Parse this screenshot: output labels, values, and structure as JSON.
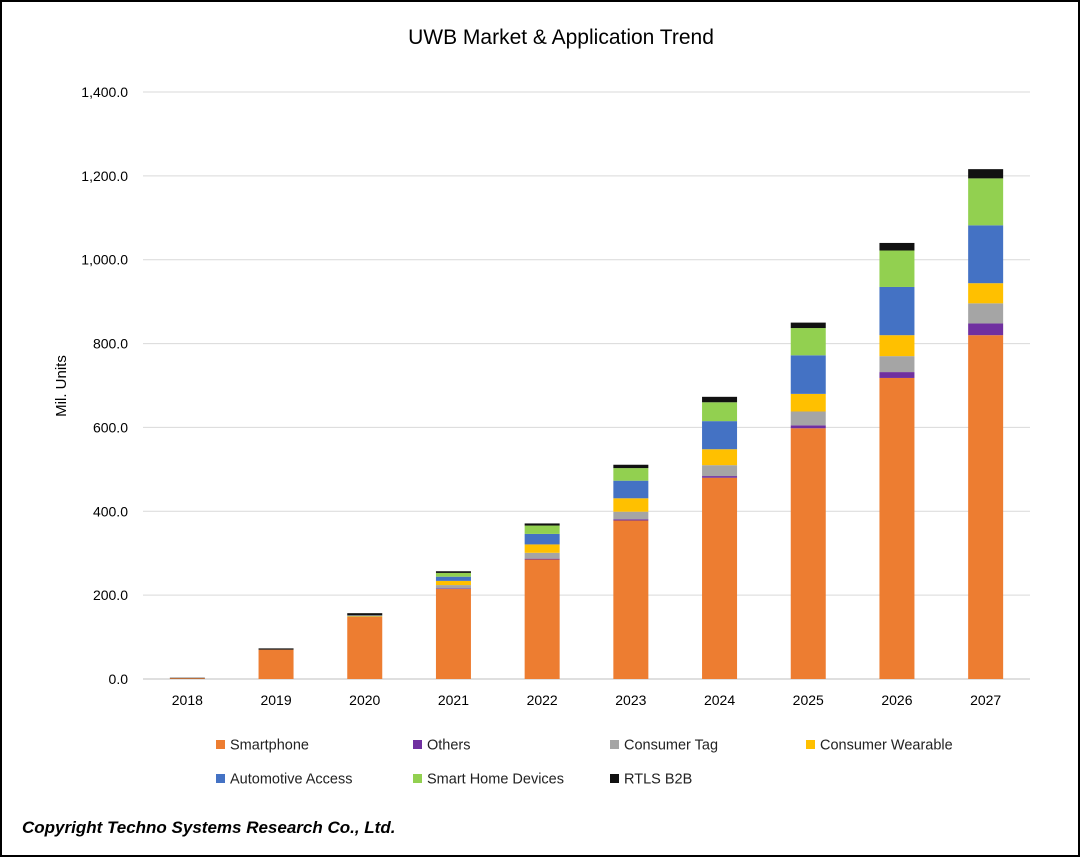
{
  "chart_data": {
    "type": "bar",
    "stacked": true,
    "title": "UWB Market & Application Trend",
    "xlabel": "",
    "ylabel": "Mil. Units",
    "ylim": [
      0,
      1400
    ],
    "yticks": [
      "0.0",
      "200.0",
      "400.0",
      "600.0",
      "800.0",
      "1,000.0",
      "1,200.0",
      "1,400.0"
    ],
    "ytick_values": [
      0,
      200,
      400,
      600,
      800,
      1000,
      1200,
      1400
    ],
    "grid": true,
    "legend_position": "bottom",
    "categories": [
      "2018",
      "2019",
      "2020",
      "2021",
      "2022",
      "2023",
      "2024",
      "2025",
      "2026",
      "2027"
    ],
    "series": [
      {
        "name": "Smartphone",
        "color": "#ED7D31",
        "values": [
          2,
          70,
          148,
          215,
          285,
          378,
          480,
          598,
          718,
          820
        ]
      },
      {
        "name": "Others",
        "color": "#7030A0",
        "values": [
          0,
          0,
          0,
          1,
          2,
          3,
          4,
          7,
          14,
          28
        ]
      },
      {
        "name": "Consumer Tag",
        "color": "#A5A5A5",
        "values": [
          0,
          0,
          1,
          8,
          14,
          18,
          26,
          33,
          38,
          48
        ]
      },
      {
        "name": "Consumer Wearable",
        "color": "#FFC000",
        "values": [
          0,
          0,
          2,
          10,
          20,
          32,
          38,
          42,
          50,
          48
        ]
      },
      {
        "name": "Automotive Access",
        "color": "#4472C4",
        "values": [
          0,
          0,
          1,
          10,
          25,
          42,
          67,
          92,
          115,
          138
        ]
      },
      {
        "name": "Smart Home Devices",
        "color": "#92D050",
        "values": [
          0,
          0,
          0,
          9,
          20,
          30,
          45,
          65,
          87,
          112
        ]
      },
      {
        "name": "RTLS B2B",
        "color": "#111111",
        "values": [
          1,
          3,
          5,
          4,
          5,
          8,
          13,
          13,
          18,
          22
        ]
      }
    ]
  },
  "footer": {
    "copyright": "Copyright Techno Systems Research Co., Ltd."
  }
}
